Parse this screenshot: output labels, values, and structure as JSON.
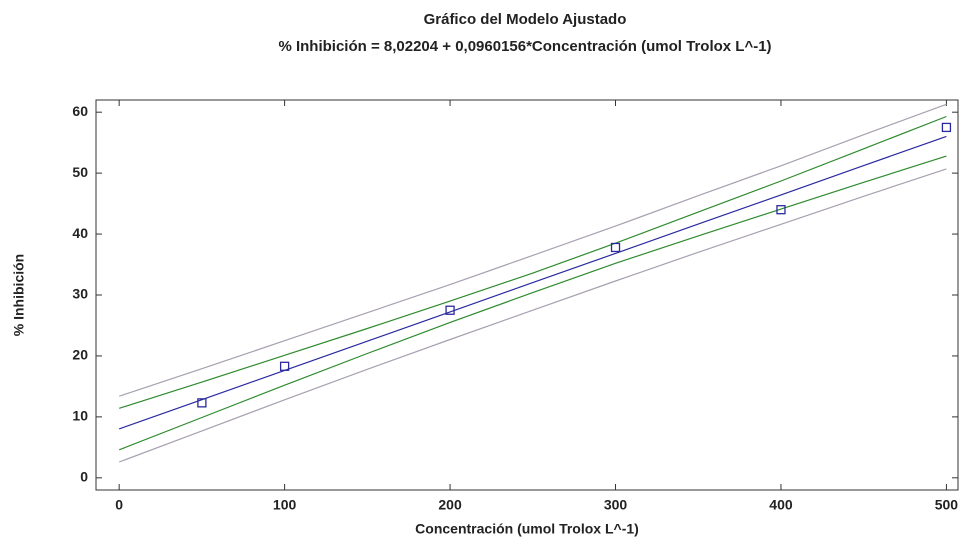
{
  "chart_data": {
    "type": "scatter",
    "title": "Gráfico del Modelo Ajustado",
    "subtitle": "% Inhibición = 8,02204 + 0,0960156*Concentración (umol Trolox L^-1)",
    "x_label": "Concentración (umol Trolox L^-1)",
    "y_label": "% Inhibición",
    "points": {
      "color": "#2a2aa0",
      "marker": "square",
      "x": [
        50,
        100,
        200,
        300,
        400,
        500
      ],
      "values": [
        12.3,
        18.3,
        27.5,
        37.8,
        44.0,
        57.5
      ]
    },
    "x": [
      0,
      50,
      100,
      150,
      200,
      250,
      300,
      350,
      400,
      450,
      500
    ],
    "series": [
      {
        "color": "#a8a0b0",
        "values": [
          13.4,
          17.9,
          22.5,
          27.1,
          31.7,
          36.5,
          41.3,
          46.3,
          51.2,
          56.3,
          61.3
        ]
      },
      {
        "color": "#2e8b2e",
        "values": [
          11.4,
          15.7,
          20.1,
          24.5,
          29.0,
          33.6,
          38.5,
          43.6,
          48.7,
          54.0,
          59.3
        ]
      },
      {
        "color": "#2a2aa0",
        "values": [
          8.02,
          12.82,
          17.62,
          22.42,
          27.22,
          32.03,
          36.83,
          41.63,
          46.43,
          51.23,
          56.03
        ]
      },
      {
        "color": "#2e8b2e",
        "values": [
          4.6,
          9.9,
          15.2,
          20.4,
          25.5,
          30.4,
          35.2,
          39.7,
          44.1,
          48.5,
          52.8
        ]
      },
      {
        "color": "#a8a0b0",
        "values": [
          2.6,
          7.7,
          12.8,
          17.8,
          22.7,
          27.5,
          32.3,
          37.0,
          41.6,
          46.2,
          50.7
        ]
      }
    ],
    "xlim": [
      -14,
      507
    ],
    "xticks": [
      0,
      100,
      200,
      300,
      400,
      500
    ],
    "ylim": [
      -2,
      62
    ],
    "yticks": [
      0,
      10,
      20,
      30,
      40,
      50,
      60
    ]
  }
}
